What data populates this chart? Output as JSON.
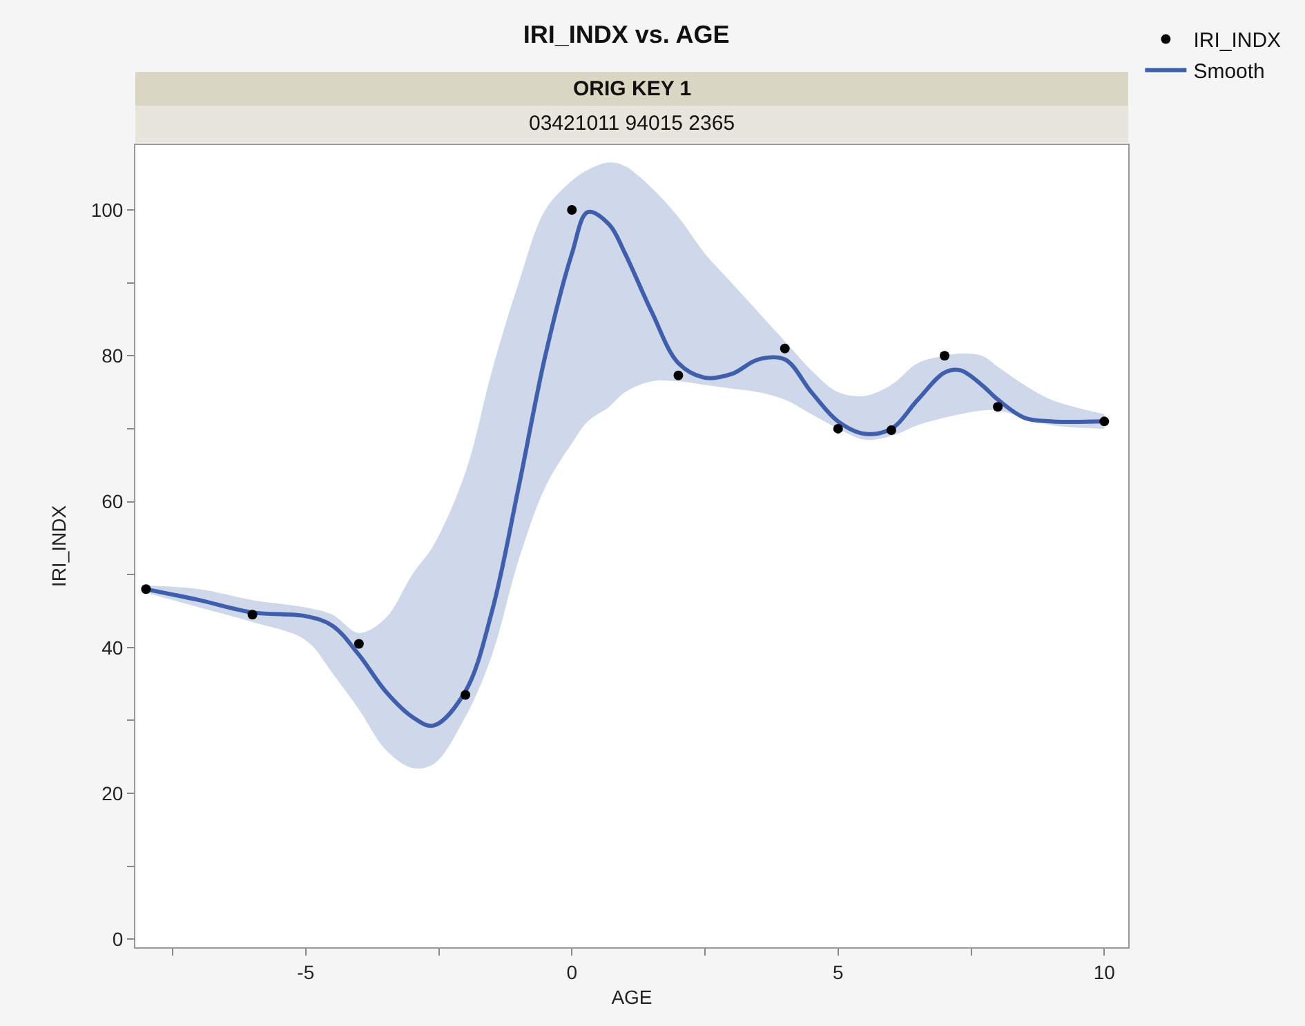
{
  "chart_data": {
    "type": "scatter",
    "title": "IRI_INDX vs. AGE",
    "xlabel": "AGE",
    "ylabel": "IRI_INDX",
    "annotations": [
      "ORIG KEY 1",
      "03421011 94015 2365"
    ],
    "xlim": [
      -8.2,
      10.45
    ],
    "xticks": [
      {
        "value": -7.5,
        "label": null
      },
      -5,
      {
        "value": -2.5,
        "label": null
      },
      0,
      {
        "value": 2.5,
        "label": null
      },
      5,
      {
        "value": 7.5,
        "label": null
      },
      10
    ],
    "ylim": [
      -1.1,
      108.9
    ],
    "yticks": [
      0,
      {
        "value": 10,
        "label": null
      },
      20,
      {
        "value": 30,
        "label": null
      },
      40,
      {
        "value": 50,
        "label": null
      },
      60,
      {
        "value": 70,
        "label": null
      },
      80,
      {
        "value": 90,
        "label": null
      },
      100
    ],
    "grid": false,
    "legend": "top right",
    "line_style": "solid",
    "series": [
      {
        "name": "IRI_INDX",
        "marker": "circle",
        "color": "#000000",
        "x": [
          -8,
          -6,
          -4,
          -2,
          0,
          2,
          4,
          5,
          6,
          7,
          8,
          10
        ],
        "values": [
          48,
          44.5,
          40.5,
          33.5,
          100,
          77.3,
          81,
          70,
          69.8,
          80,
          73,
          71
        ]
      },
      {
        "type": "line",
        "marker": "none",
        "name": "Smooth",
        "color": "#3f5fad",
        "x": [
          -8,
          -7,
          -6,
          -5,
          -4.5,
          -4,
          -3.5,
          -3,
          -2.6,
          -2,
          -1.5,
          -1,
          -0.5,
          0,
          0.3,
          0.7,
          1,
          1.5,
          2,
          2.5,
          3,
          3.5,
          4,
          4.5,
          5,
          5.5,
          6,
          6.5,
          7,
          7.3,
          7.7,
          8,
          8.5,
          9,
          10
        ],
        "values": [
          48,
          46.5,
          44.8,
          44.3,
          43,
          39,
          34,
          30.5,
          29.3,
          34,
          45,
          62,
          80,
          94,
          99.7,
          98,
          94,
          86,
          79,
          77,
          77.5,
          79.5,
          79.5,
          75,
          71,
          69.3,
          70,
          74,
          77.7,
          78,
          76,
          74,
          71.5,
          71,
          71
        ],
        "lower": [
          47.5,
          45.5,
          43.5,
          41,
          36.5,
          31.5,
          26,
          23.5,
          24,
          30.5,
          39,
          52,
          62,
          68,
          71,
          73,
          75,
          76.5,
          76.5,
          76,
          75.5,
          75,
          74,
          72,
          70,
          68.5,
          69,
          70.5,
          71.5,
          72,
          72.5,
          72.5,
          71.5,
          70.5,
          70
        ],
        "upper": [
          48.5,
          48,
          46.5,
          45.5,
          44.5,
          42,
          44,
          50,
          54,
          64,
          78,
          90,
          100,
          104,
          105.5,
          106.5,
          106,
          103,
          99,
          94,
          90,
          86,
          82,
          78,
          75,
          74.5,
          76,
          79,
          80,
          80.3,
          80,
          78.5,
          76,
          74,
          72
        ]
      }
    ]
  }
}
